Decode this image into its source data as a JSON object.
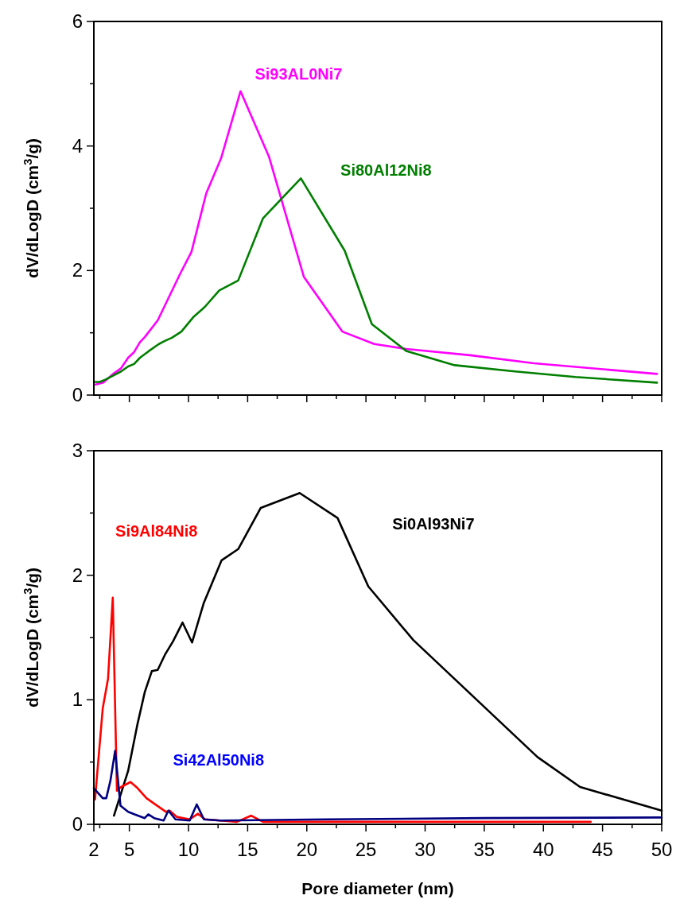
{
  "chart_data": [
    {
      "type": "line",
      "ylabel": "dV/dLogD (cm$^{3}$/g)",
      "xlim": [
        2,
        50
      ],
      "ylim": [
        0,
        6
      ],
      "tick_labels": "y",
      "grid": false,
      "xticks": [
        {
          "value": 2.5,
          "label": null
        },
        5,
        {
          "value": 7.5,
          "label": null
        },
        10,
        {
          "value": 12.5,
          "label": null
        },
        15,
        {
          "value": 17.5,
          "label": null
        },
        20,
        {
          "value": 22.5,
          "label": null
        },
        25,
        {
          "value": 27.5,
          "label": null
        },
        30,
        {
          "value": 32.5,
          "label": null
        },
        35,
        {
          "value": 37.5,
          "label": null
        },
        40,
        {
          "value": 42.5,
          "label": null
        },
        45,
        {
          "value": 47.5,
          "label": null
        },
        50
      ],
      "yticks": [
        0,
        {
          "value": 1,
          "label": null
        },
        2,
        {
          "value": 3,
          "label": null
        },
        4,
        {
          "value": 5,
          "label": null
        },
        6
      ],
      "series": [
        {
          "name": "Si93AL0Ni7",
          "color": "#ff00ff",
          "x": [
            2.15,
            2.8,
            3.7,
            4.3,
            4.9,
            5.4,
            5.9,
            6.3,
            7.4,
            9.3,
            10.25,
            11.5,
            12.75,
            14.4,
            16.8,
            19.75,
            23.0,
            25.7,
            28.4,
            33.8,
            39.2,
            49.6
          ],
          "values": [
            0.17,
            0.2,
            0.35,
            0.43,
            0.6,
            0.69,
            0.85,
            0.93,
            1.2,
            1.95,
            2.3,
            3.24,
            3.8,
            4.88,
            3.83,
            1.9,
            1.02,
            0.82,
            0.74,
            0.64,
            0.51,
            0.34
          ]
        },
        {
          "name": "Si80Al12Ni8",
          "color": "#007f00",
          "x": [
            2.1,
            2.5,
            3.0,
            4.3,
            4.9,
            5.4,
            5.9,
            6.6,
            7.5,
            8.0,
            8.6,
            9.4,
            10.4,
            11.4,
            12.6,
            14.2,
            16.3,
            19.5,
            23.2,
            25.5,
            28.4,
            32.5,
            37.6,
            42.7,
            49.6
          ],
          "values": [
            0.21,
            0.21,
            0.25,
            0.38,
            0.46,
            0.5,
            0.6,
            0.7,
            0.82,
            0.87,
            0.92,
            1.02,
            1.25,
            1.42,
            1.68,
            1.84,
            2.84,
            3.48,
            2.32,
            1.14,
            0.71,
            0.48,
            0.38,
            0.29,
            0.2
          ]
        }
      ]
    },
    {
      "type": "line",
      "xlabel": "Pore diameter (nm)",
      "ylabel": "dV/dLogD (cm$^{3}$/g)",
      "xlim": [
        2,
        50
      ],
      "ylim": [
        0,
        3
      ],
      "grid": false,
      "xticks": [
        {
          "value": 2,
          "label": "2"
        },
        {
          "value": 2.5,
          "label": null
        },
        5,
        {
          "value": 7.5,
          "label": null
        },
        10,
        {
          "value": 12.5,
          "label": null
        },
        15,
        {
          "value": 17.5,
          "label": null
        },
        20,
        {
          "value": 22.5,
          "label": null
        },
        25,
        {
          "value": 27.5,
          "label": null
        },
        30,
        {
          "value": 32.5,
          "label": null
        },
        35,
        {
          "value": 37.5,
          "label": null
        },
        40,
        {
          "value": 42.5,
          "label": null
        },
        45,
        {
          "value": 47.5,
          "label": null
        },
        50
      ],
      "yticks": [
        0,
        {
          "value": 0.5,
          "label": null
        },
        1,
        {
          "value": 1.5,
          "label": null
        },
        2,
        {
          "value": 2.5,
          "label": null
        },
        3
      ],
      "series": [
        {
          "name": "Si0Al93Ni7",
          "color": "#000000",
          "x": [
            3.7,
            4.9,
            5.7,
            6.3,
            6.9,
            7.4,
            8.0,
            8.7,
            9.5,
            10.3,
            11.3,
            12.8,
            14.2,
            16.1,
            19.4,
            22.6,
            25.2,
            29.0,
            39.5,
            43.1,
            50
          ],
          "values": [
            0.07,
            0.43,
            0.81,
            1.06,
            1.23,
            1.24,
            1.36,
            1.47,
            1.62,
            1.46,
            1.78,
            2.12,
            2.21,
            2.54,
            2.66,
            2.46,
            1.91,
            1.48,
            0.54,
            0.3,
            0.11
          ]
        },
        {
          "name": "Si9Al84Ni8",
          "color": "#ff0000",
          "x": [
            2.1,
            2.75,
            3.2,
            3.6,
            3.95,
            4.3,
            5.1,
            5.7,
            6.45,
            7.5,
            8.1,
            8.4,
            9.0,
            10.1,
            10.8,
            11.4,
            12.7,
            14.1,
            15.3,
            16.3,
            21.7,
            44.0
          ],
          "values": [
            0.2,
            0.93,
            1.17,
            1.82,
            0.27,
            0.3,
            0.34,
            0.29,
            0.21,
            0.14,
            0.1,
            0.11,
            0.06,
            0.04,
            0.085,
            0.04,
            0.03,
            0.02,
            0.07,
            0.02,
            0.02,
            0.02
          ]
        },
        {
          "name": "Si42Al50Ni8",
          "color": "#000080",
          "x": [
            2.0,
            2.75,
            3.05,
            3.4,
            3.8,
            4.25,
            4.9,
            5.45,
            6.3,
            6.6,
            7.1,
            7.9,
            8.3,
            8.9,
            10.1,
            10.7,
            11.3,
            12.7,
            21.7,
            35,
            50
          ],
          "values": [
            0.29,
            0.21,
            0.21,
            0.35,
            0.59,
            0.15,
            0.1,
            0.08,
            0.05,
            0.08,
            0.05,
            0.03,
            0.11,
            0.04,
            0.03,
            0.16,
            0.04,
            0.03,
            0.04,
            0.05,
            0.055
          ]
        }
      ]
    }
  ]
}
